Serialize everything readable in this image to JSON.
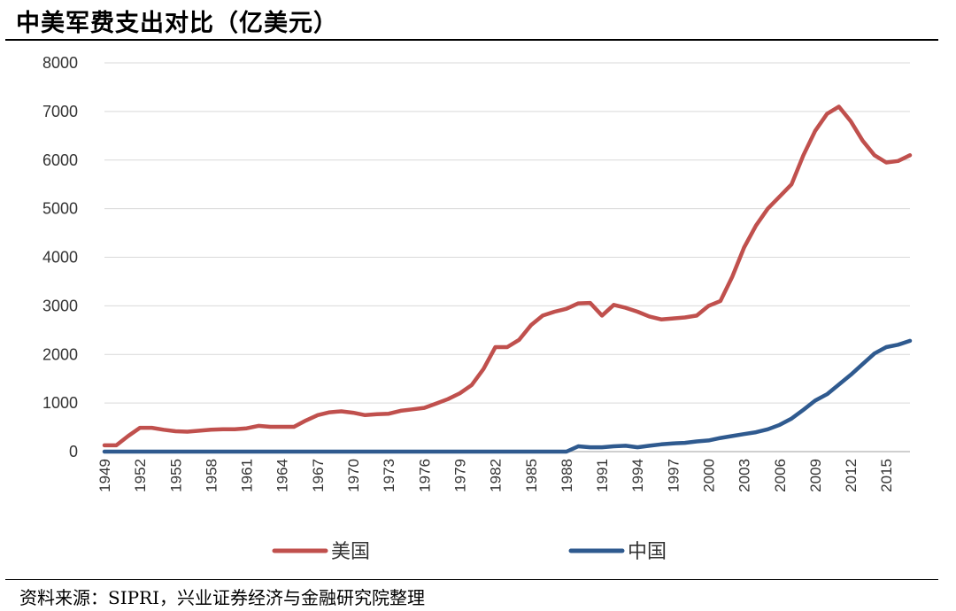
{
  "header": {
    "title": "中美军费支出对比（亿美元）"
  },
  "footer": {
    "source": "资料来源：SIPRI，兴业证券经济与金融研究院整理"
  },
  "chart_data": {
    "type": "line",
    "title": "中美军费支出对比（亿美元）",
    "xlabel": "",
    "ylabel": "",
    "ylim": [
      0,
      8000
    ],
    "yticks": [
      0,
      1000,
      2000,
      3000,
      4000,
      5000,
      6000,
      7000,
      8000
    ],
    "xticks": [
      "1949",
      "1952",
      "1955",
      "1958",
      "1961",
      "1964",
      "1967",
      "1970",
      "1973",
      "1976",
      "1979",
      "1982",
      "1985",
      "1988",
      "1991",
      "1994",
      "1997",
      "2000",
      "2003",
      "2006",
      "2009",
      "2012",
      "2015"
    ],
    "grid": true,
    "legend_position": "bottom",
    "x": [
      1949,
      1950,
      1951,
      1952,
      1953,
      1954,
      1955,
      1956,
      1957,
      1958,
      1959,
      1960,
      1961,
      1962,
      1963,
      1964,
      1965,
      1966,
      1967,
      1968,
      1969,
      1970,
      1971,
      1972,
      1973,
      1974,
      1975,
      1976,
      1977,
      1978,
      1979,
      1980,
      1981,
      1982,
      1983,
      1984,
      1985,
      1986,
      1987,
      1988,
      1989,
      1990,
      1991,
      1992,
      1993,
      1994,
      1995,
      1996,
      1997,
      1998,
      1999,
      2000,
      2001,
      2002,
      2003,
      2004,
      2005,
      2006,
      2007,
      2008,
      2009,
      2010,
      2011,
      2012,
      2013,
      2014,
      2015,
      2016,
      2017
    ],
    "series": [
      {
        "name": "美国",
        "color": "#c0504d",
        "values": [
          130,
          130,
          320,
          490,
          490,
          450,
          420,
          410,
          430,
          450,
          460,
          460,
          480,
          530,
          510,
          510,
          510,
          640,
          750,
          810,
          830,
          800,
          750,
          770,
          780,
          840,
          870,
          900,
          990,
          1080,
          1200,
          1370,
          1700,
          2150,
          2150,
          2300,
          2600,
          2800,
          2880,
          2940,
          3050,
          3060,
          2800,
          3020,
          2960,
          2880,
          2780,
          2720,
          2740,
          2760,
          2800,
          3000,
          3100,
          3600,
          4200,
          4650,
          5000,
          5250,
          5500,
          6100,
          6600,
          6950,
          7100,
          6800,
          6400,
          6100,
          5950,
          5980,
          6100
        ]
      },
      {
        "name": "中国",
        "color": "#2f5a8f",
        "values": [
          0,
          0,
          0,
          0,
          0,
          0,
          0,
          0,
          0,
          0,
          0,
          0,
          0,
          0,
          0,
          0,
          0,
          0,
          0,
          0,
          0,
          0,
          0,
          0,
          0,
          0,
          0,
          0,
          0,
          0,
          0,
          0,
          0,
          0,
          0,
          0,
          0,
          0,
          0,
          0,
          110,
          90,
          90,
          110,
          120,
          90,
          120,
          150,
          170,
          180,
          210,
          230,
          280,
          320,
          360,
          400,
          460,
          550,
          680,
          860,
          1050,
          1180,
          1380,
          1580,
          1800,
          2020,
          2150,
          2200,
          2280
        ]
      }
    ]
  }
}
